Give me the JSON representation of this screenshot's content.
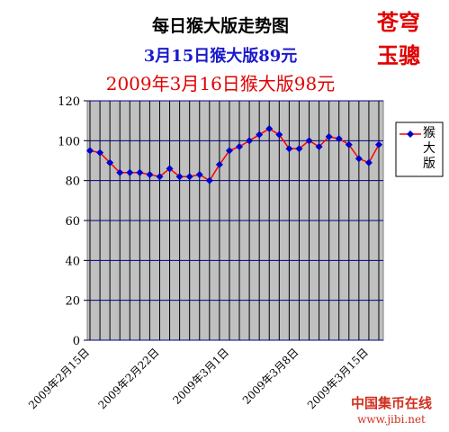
{
  "chart_data": {
    "type": "line",
    "title": "每日猴大版走势图",
    "subtitle": "3月15日猴大版89元",
    "annotation": "2009年3月16日猴大版98元",
    "stamp": [
      "苍穹",
      "玉骢"
    ],
    "watermark": [
      "中国集币在线",
      "www.jibi.net"
    ],
    "categories": [
      "2009年2月15日",
      null,
      null,
      null,
      null,
      null,
      null,
      "2009年2月22日",
      null,
      null,
      null,
      null,
      null,
      null,
      "2009年3月1日",
      null,
      null,
      null,
      null,
      null,
      null,
      "2009年3月8日",
      null,
      null,
      null,
      null,
      null,
      null,
      "2009年3月15日",
      null
    ],
    "series": [
      {
        "name": "猴大版",
        "color": "#ff0000",
        "marker_color": "#0000cc",
        "values": [
          95,
          94,
          89,
          84,
          84,
          84,
          83,
          82,
          86,
          82,
          82,
          83,
          80,
          88,
          95,
          97,
          100,
          103,
          106,
          103,
          96,
          96,
          100,
          97,
          102,
          101,
          98,
          91,
          89,
          98
        ]
      }
    ],
    "ylim": [
      0,
      120
    ],
    "yticks": [
      0,
      20,
      40,
      60,
      80,
      100,
      120
    ],
    "grid": true,
    "legend": "right"
  }
}
